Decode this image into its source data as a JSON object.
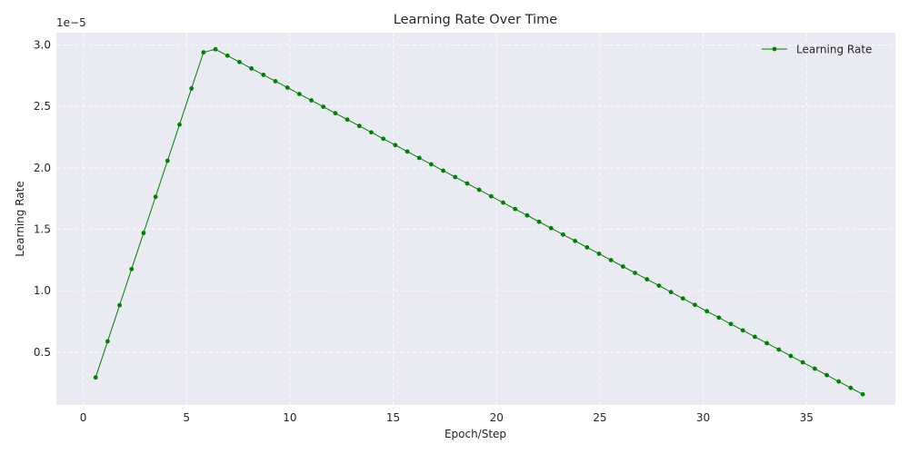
{
  "chart_data": {
    "type": "line",
    "title": "Learning Rate Over Time",
    "xlabel": "Epoch/Step",
    "ylabel": "Learning Rate",
    "offset_text": "1e−5",
    "y_scale_factor": 1e-05,
    "xlim": [
      -1.3,
      39.3
    ],
    "ylim": [
      0.07,
      3.1
    ],
    "x_ticks": [
      0,
      5,
      10,
      15,
      20,
      25,
      30,
      35
    ],
    "x_tick_labels": [
      "0",
      "5",
      "10",
      "15",
      "20",
      "25",
      "30",
      "35"
    ],
    "y_ticks": [
      0.5,
      1.0,
      1.5,
      2.0,
      2.5,
      3.0
    ],
    "y_tick_labels": [
      "0.5",
      "1.0",
      "1.5",
      "2.0",
      "2.5",
      "3.0"
    ],
    "grid": true,
    "legend_position": "top-right",
    "series": [
      {
        "name": "Learning Rate",
        "color": "#008000",
        "marker": "circle",
        "x": [
          0.6,
          1.18,
          1.76,
          2.34,
          2.92,
          3.5,
          4.08,
          4.66,
          5.24,
          5.82,
          6.4,
          6.98,
          7.56,
          8.14,
          8.72,
          9.3,
          9.88,
          10.46,
          11.04,
          11.62,
          12.2,
          12.78,
          13.36,
          13.94,
          14.52,
          15.1,
          15.68,
          16.26,
          16.84,
          17.42,
          18.0,
          18.58,
          19.16,
          19.74,
          20.32,
          20.9,
          21.48,
          22.06,
          22.64,
          23.22,
          23.8,
          24.38,
          24.96,
          25.54,
          26.12,
          26.7,
          27.28,
          27.86,
          28.44,
          29.02,
          29.6,
          30.18,
          30.76,
          31.34,
          31.92,
          32.5,
          33.08,
          33.66,
          34.24,
          34.82,
          35.4,
          35.98,
          36.56,
          37.14,
          37.72
        ],
        "y": [
          0.294,
          0.588,
          0.882,
          1.176,
          1.47,
          1.764,
          2.058,
          2.352,
          2.646,
          2.94,
          2.965,
          2.913,
          2.861,
          2.809,
          2.757,
          2.705,
          2.653,
          2.601,
          2.549,
          2.497,
          2.445,
          2.393,
          2.341,
          2.289,
          2.237,
          2.185,
          2.133,
          2.081,
          2.029,
          1.977,
          1.925,
          1.873,
          1.821,
          1.769,
          1.717,
          1.665,
          1.613,
          1.561,
          1.509,
          1.457,
          1.405,
          1.353,
          1.301,
          1.249,
          1.197,
          1.145,
          1.093,
          1.041,
          0.989,
          0.937,
          0.885,
          0.833,
          0.781,
          0.729,
          0.677,
          0.625,
          0.573,
          0.521,
          0.469,
          0.417,
          0.365,
          0.313,
          0.261,
          0.209,
          0.157
        ]
      }
    ]
  }
}
